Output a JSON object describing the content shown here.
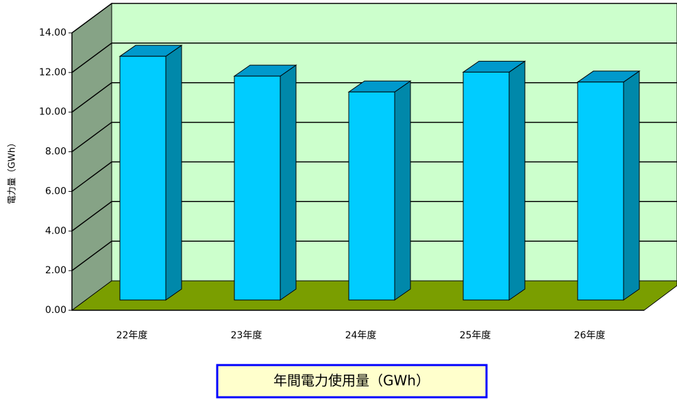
{
  "chart_data": {
    "type": "bar3d",
    "title": "年間電力使用量（GWh）",
    "y_label": "電力量（GWh）",
    "categories": [
      "22年度",
      "23年度",
      "24年度",
      "25年度",
      "26年度"
    ],
    "values": [
      12.3,
      11.3,
      10.5,
      11.5,
      11.0
    ],
    "color": "#00ccff",
    "ylim": [
      0,
      14
    ],
    "yticks": [
      {
        "value": 0,
        "label": "0.00"
      },
      {
        "value": 2,
        "label": "2.00"
      },
      {
        "value": 4,
        "label": "4.00"
      },
      {
        "value": 6,
        "label": "6.00"
      },
      {
        "value": 8,
        "label": "8.00"
      },
      {
        "value": 10,
        "label": "10.00"
      },
      {
        "value": 12,
        "label": "12.00"
      },
      {
        "value": 14,
        "label": "14.00"
      }
    ],
    "grid": true
  }
}
